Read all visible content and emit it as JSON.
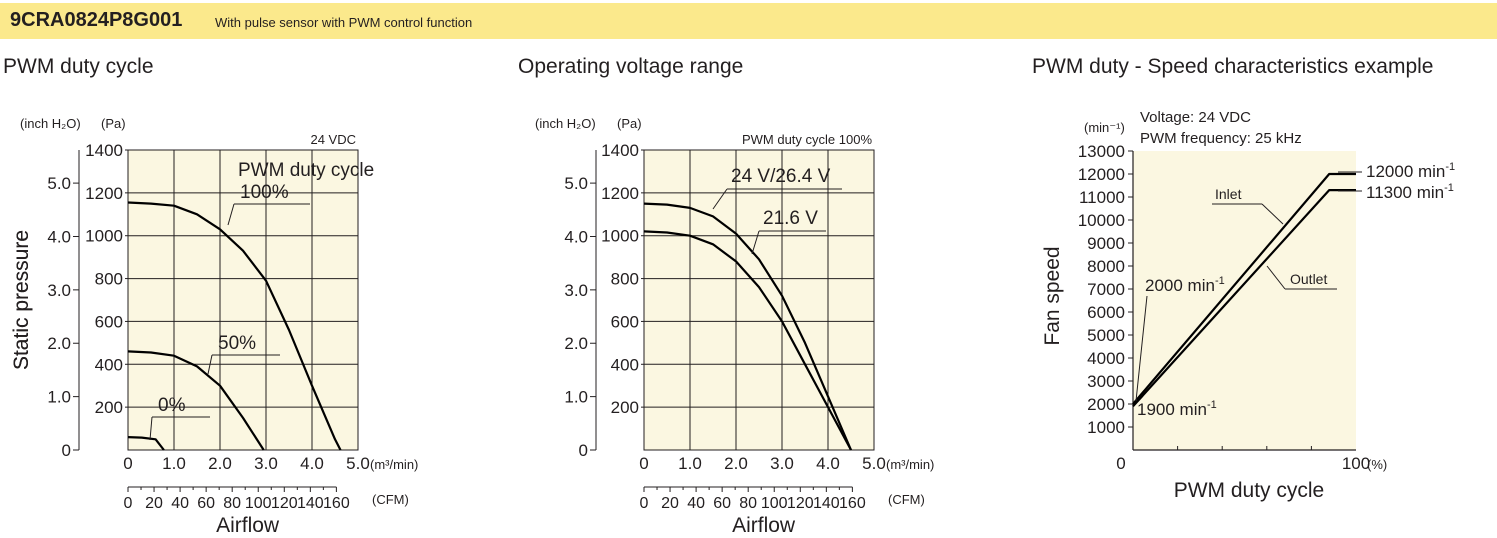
{
  "header": {
    "model": "9CRA0824P8G001",
    "description": "With pulse sensor with PWM control function",
    "background": "#fbe98c"
  },
  "colors": {
    "plot_bg": "#fbf7e1",
    "grid": "#231f20",
    "curve": "#000000"
  },
  "chart_data": [
    {
      "type": "line",
      "title": "PWM duty cycle",
      "xlabel": "Airflow",
      "ylabel": "Static pressure",
      "unit_pa": "(Pa)",
      "unit_inch": "(inch H₂O)",
      "unit_m3min": "(m³/min)",
      "unit_cfm": "(CFM)",
      "note": "24 VDC",
      "legend_label": "PWM duty cycle",
      "xlim": [
        0,
        5.0
      ],
      "ylim": [
        0,
        1400
      ],
      "x_ticks": [
        "0",
        "1.0",
        "2.0",
        "3.0",
        "4.0",
        "5.0"
      ],
      "y_ticks_pa": [
        "200",
        "400",
        "600",
        "800",
        "1000",
        "1200",
        "1400"
      ],
      "y_ticks_inch": [
        "0",
        "1.0",
        "2.0",
        "3.0",
        "4.0",
        "5.0"
      ],
      "cfm_ticks": [
        "0",
        "20",
        "40",
        "60",
        "80",
        "100",
        "120",
        "140",
        "160"
      ],
      "series": [
        {
          "name": "100%",
          "x": [
            0,
            0.5,
            1.0,
            1.5,
            2.0,
            2.5,
            3.0,
            3.5,
            4.0,
            4.5,
            4.62
          ],
          "y": [
            1155,
            1150,
            1140,
            1100,
            1030,
            930,
            790,
            560,
            300,
            50,
            0
          ]
        },
        {
          "name": "50%",
          "x": [
            0,
            0.5,
            1.0,
            1.5,
            2.0,
            2.5,
            2.95
          ],
          "y": [
            460,
            455,
            440,
            390,
            300,
            150,
            0
          ]
        },
        {
          "name": "0%",
          "x": [
            0,
            0.3,
            0.6,
            0.78
          ],
          "y": [
            60,
            58,
            50,
            0
          ]
        }
      ]
    },
    {
      "type": "line",
      "title": "Operating voltage range",
      "xlabel": "Airflow",
      "ylabel": "Static pressure",
      "unit_pa": "(Pa)",
      "unit_inch": "(inch H₂O)",
      "unit_m3min": "(m³/min)",
      "unit_cfm": "(CFM)",
      "note": "PWM duty cycle 100%",
      "xlim": [
        0,
        5.0
      ],
      "ylim": [
        0,
        1400
      ],
      "x_ticks": [
        "0",
        "1.0",
        "2.0",
        "3.0",
        "4.0",
        "5.0"
      ],
      "y_ticks_pa": [
        "200",
        "400",
        "600",
        "800",
        "1000",
        "1200",
        "1400"
      ],
      "y_ticks_inch": [
        "0",
        "1.0",
        "2.0",
        "3.0",
        "4.0",
        "5.0"
      ],
      "cfm_ticks": [
        "0",
        "20",
        "40",
        "60",
        "80",
        "100",
        "120",
        "140",
        "160"
      ],
      "series": [
        {
          "name": "24 V/26.4 V",
          "x": [
            0,
            0.5,
            1.0,
            1.5,
            2.0,
            2.5,
            3.0,
            3.5,
            4.0,
            4.5
          ],
          "y": [
            1150,
            1145,
            1130,
            1090,
            1010,
            890,
            720,
            500,
            250,
            0
          ]
        },
        {
          "name": "21.6 V",
          "x": [
            0,
            0.5,
            1.0,
            1.5,
            2.0,
            2.5,
            3.0,
            3.5,
            4.0,
            4.5
          ],
          "y": [
            1020,
            1015,
            1000,
            960,
            880,
            760,
            600,
            400,
            200,
            0
          ]
        }
      ]
    },
    {
      "type": "line",
      "title": "PWM duty - Speed characteristics example",
      "xlabel": "PWM duty cycle",
      "ylabel": "Fan speed",
      "y_unit": "(min⁻¹)",
      "x_unit": "(%)",
      "conditions": [
        "Voltage: 24 VDC",
        "PWM frequency: 25 kHz"
      ],
      "xlim": [
        0,
        100
      ],
      "ylim": [
        0,
        13000
      ],
      "x_ticks": [
        "0",
        "100"
      ],
      "y_ticks": [
        "1000",
        "2000",
        "3000",
        "4000",
        "5000",
        "6000",
        "7000",
        "8000",
        "9000",
        "10000",
        "11000",
        "12000",
        "13000"
      ],
      "series": [
        {
          "name": "Inlet",
          "x": [
            0,
            88,
            100
          ],
          "y": [
            2000,
            12000,
            12000
          ]
        },
        {
          "name": "Outlet",
          "x": [
            0,
            88,
            100
          ],
          "y": [
            1900,
            11300,
            11300
          ]
        }
      ],
      "annotations": [
        {
          "value": "12000",
          "unit": "min",
          "sup": "-1"
        },
        {
          "value": "11300",
          "unit": "min",
          "sup": "-1"
        },
        {
          "value": "2000",
          "unit": "min",
          "sup": "-1"
        },
        {
          "value": "1900",
          "unit": "min",
          "sup": "-1"
        }
      ]
    }
  ]
}
